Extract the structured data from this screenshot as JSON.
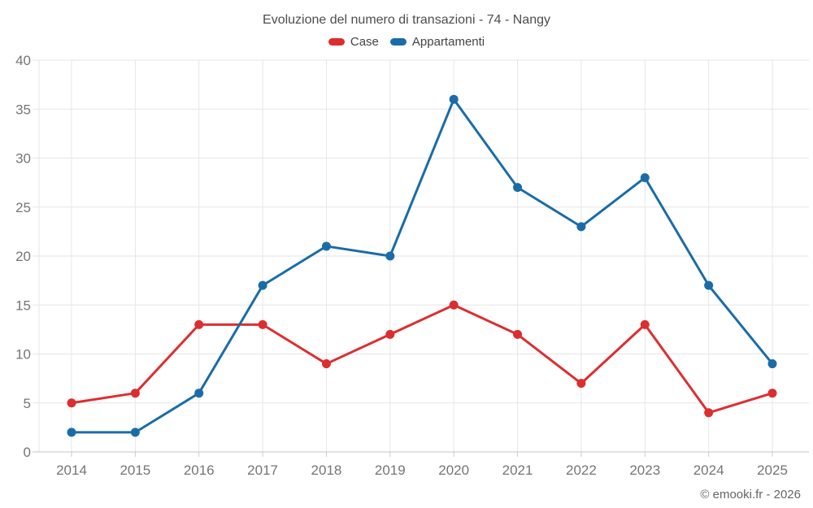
{
  "page": {
    "title": "Evoluzione del numero di transazioni - 74 - Nangy",
    "footer_credit": "© emooki.fr - 2026"
  },
  "colors": {
    "grid": "#e6e6e6",
    "axis_line": "#c6c6c6",
    "tick": "#cccccc",
    "axis_label": "#757575",
    "title_text": "#4d4d4d",
    "legend_text": "#444444",
    "footer_text": "#666666",
    "background": "#ffffff",
    "series_case": "#dc2e30",
    "series_appartamenti": "#1a6ca8"
  },
  "chart_data": {
    "type": "line",
    "title": "Evoluzione del numero di transazioni - 74 - Nangy",
    "categories": [
      "2014",
      "2015",
      "2016",
      "2017",
      "2018",
      "2019",
      "2020",
      "2021",
      "2022",
      "2023",
      "2024",
      "2025"
    ],
    "series": [
      {
        "name": "Case",
        "color": "#dc2e30",
        "values": [
          5,
          6,
          13,
          13,
          9,
          12,
          15,
          12,
          7,
          13,
          4,
          6
        ]
      },
      {
        "name": "Appartamenti",
        "color": "#1a6ca8",
        "values": [
          2,
          2,
          6,
          17,
          21,
          20,
          36,
          27,
          23,
          28,
          17,
          9
        ]
      }
    ],
    "xlabel": "",
    "ylabel": "",
    "ylim": [
      0,
      40
    ],
    "ytick_step": 5,
    "grid": true,
    "legend_position": "top",
    "marker": "circle",
    "footer": "© emooki.fr - 2026"
  }
}
